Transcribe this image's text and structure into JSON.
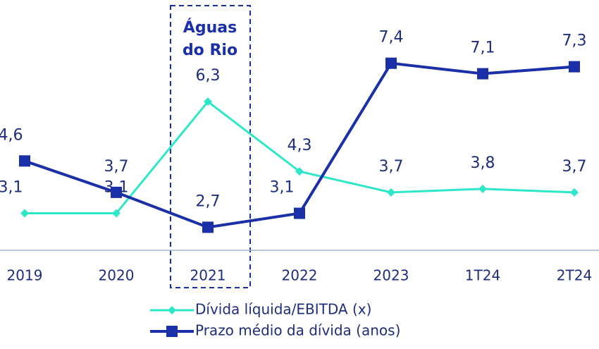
{
  "chart_data": {
    "type": "line",
    "categories": [
      "2019",
      "2020",
      "2021",
      "2022",
      "2023",
      "1T24",
      "2T24"
    ],
    "series": [
      {
        "name": "Dívida líquida/EBITDA (x)",
        "color": "#2ee6c8",
        "marker": "diamond",
        "values": [
          3.1,
          3.1,
          6.3,
          4.3,
          3.7,
          3.8,
          3.7
        ],
        "value_labels": [
          "3,1",
          "3,1",
          "6,3",
          "4,3",
          "3,7",
          "3,8",
          "3,7"
        ]
      },
      {
        "name": "Prazo médio da dívida (anos)",
        "color": "#1a2fa8",
        "marker": "square",
        "values": [
          4.6,
          3.7,
          2.7,
          3.1,
          7.4,
          7.1,
          7.3
        ],
        "value_labels": [
          "4,6",
          "3,7",
          "2,7",
          "3,1",
          "7,4",
          "7,1",
          "7,3"
        ]
      }
    ],
    "annotation_lines": [
      "Águas",
      "do Rio"
    ],
    "ylim": [
      2,
      9
    ]
  }
}
